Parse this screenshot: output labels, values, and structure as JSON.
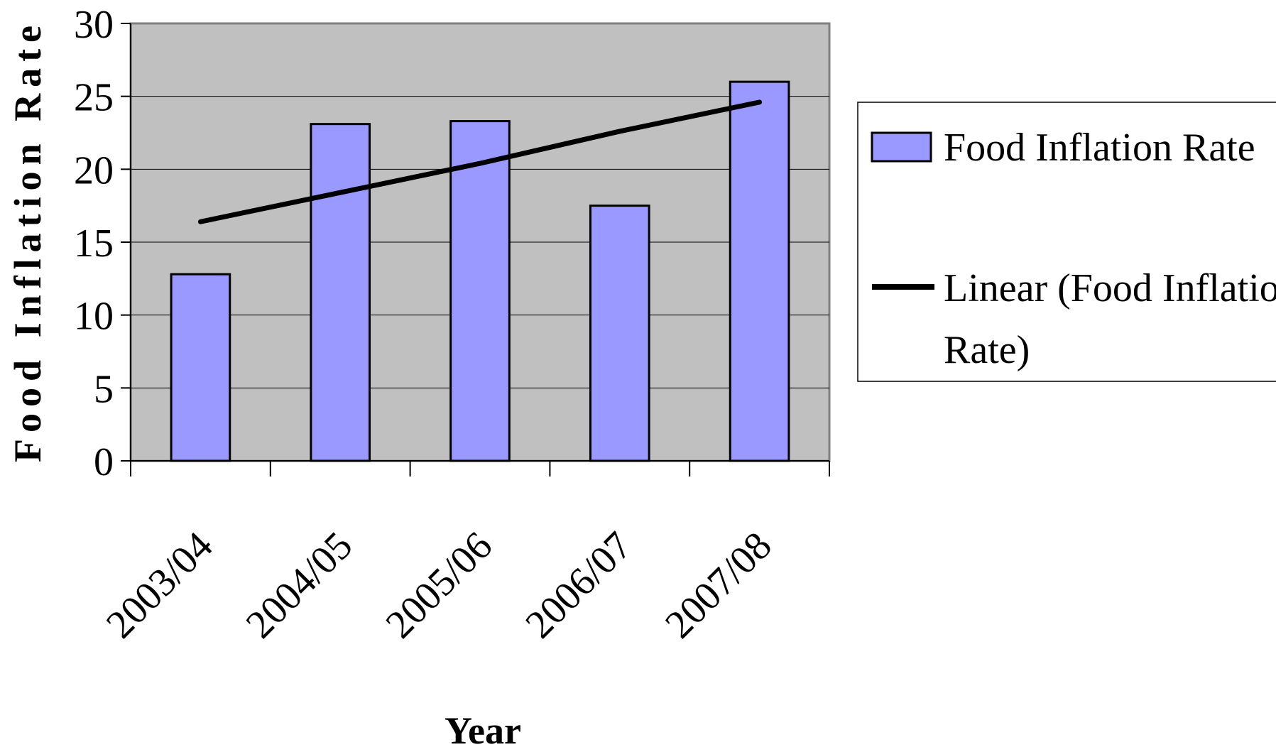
{
  "chart_data": {
    "type": "bar",
    "xlabel": "Year",
    "ylabel": "Food Inflation Rate",
    "categories": [
      "2003/04",
      "2004/05",
      "2005/06",
      "2006/07",
      "2007/08"
    ],
    "series": [
      {
        "name": "Food Inflation Rate",
        "type": "bar",
        "values": [
          12.8,
          23.1,
          23.3,
          17.5,
          26.0
        ],
        "color": "#9999ff"
      },
      {
        "name": "Linear (Food Inflation Rate)",
        "type": "line",
        "values": [
          16.4,
          18.4,
          20.4,
          22.6,
          24.6
        ],
        "color": "#000000"
      }
    ],
    "ylim": [
      0,
      30
    ],
    "yticks": [
      0,
      5,
      10,
      15,
      20,
      25,
      30
    ],
    "grid": true,
    "plot_background": "#c0c0c0",
    "legend": {
      "position": "right",
      "entries": [
        "Food Inflation Rate",
        "Linear (Food Inflation Rate)"
      ]
    }
  }
}
